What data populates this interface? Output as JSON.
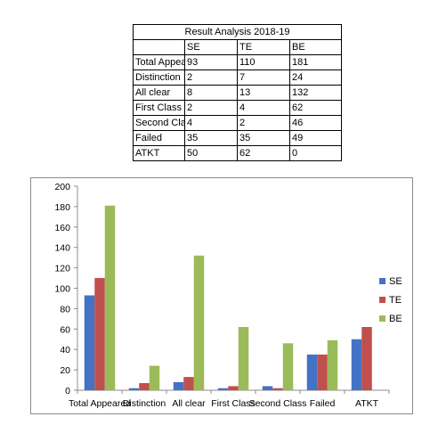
{
  "table": {
    "title": "Result Analysis 2018-19",
    "headers": [
      "",
      "SE",
      "TE",
      "BE"
    ],
    "rows": [
      [
        "Total Appeared",
        "93",
        "110",
        "181"
      ],
      [
        "Distinction",
        "2",
        "7",
        "24"
      ],
      [
        "All clear",
        "8",
        "13",
        "132"
      ],
      [
        "First Class",
        "2",
        "4",
        "62"
      ],
      [
        "Second Class",
        "4",
        "2",
        "46"
      ],
      [
        "Failed",
        "35",
        "35",
        "49"
      ],
      [
        "ATKT",
        "50",
        "62",
        "0"
      ]
    ]
  },
  "chart_data": {
    "type": "bar",
    "categories": [
      "Total Appeared",
      "Distinction",
      "All clear",
      "First Class",
      "Second Class",
      "Failed",
      "ATKT"
    ],
    "series": [
      {
        "name": "SE",
        "color": "#4472C4",
        "values": [
          93,
          2,
          8,
          2,
          4,
          35,
          50
        ]
      },
      {
        "name": "TE",
        "color": "#C0504D",
        "values": [
          110,
          7,
          13,
          4,
          2,
          35,
          62
        ]
      },
      {
        "name": "BE",
        "color": "#9BBB59",
        "values": [
          181,
          24,
          132,
          62,
          46,
          49,
          0
        ]
      }
    ],
    "ylim": [
      0,
      200
    ],
    "yticks": [
      0,
      20,
      40,
      60,
      80,
      100,
      120,
      140,
      160,
      180,
      200
    ],
    "grid": false,
    "legend": "right"
  }
}
